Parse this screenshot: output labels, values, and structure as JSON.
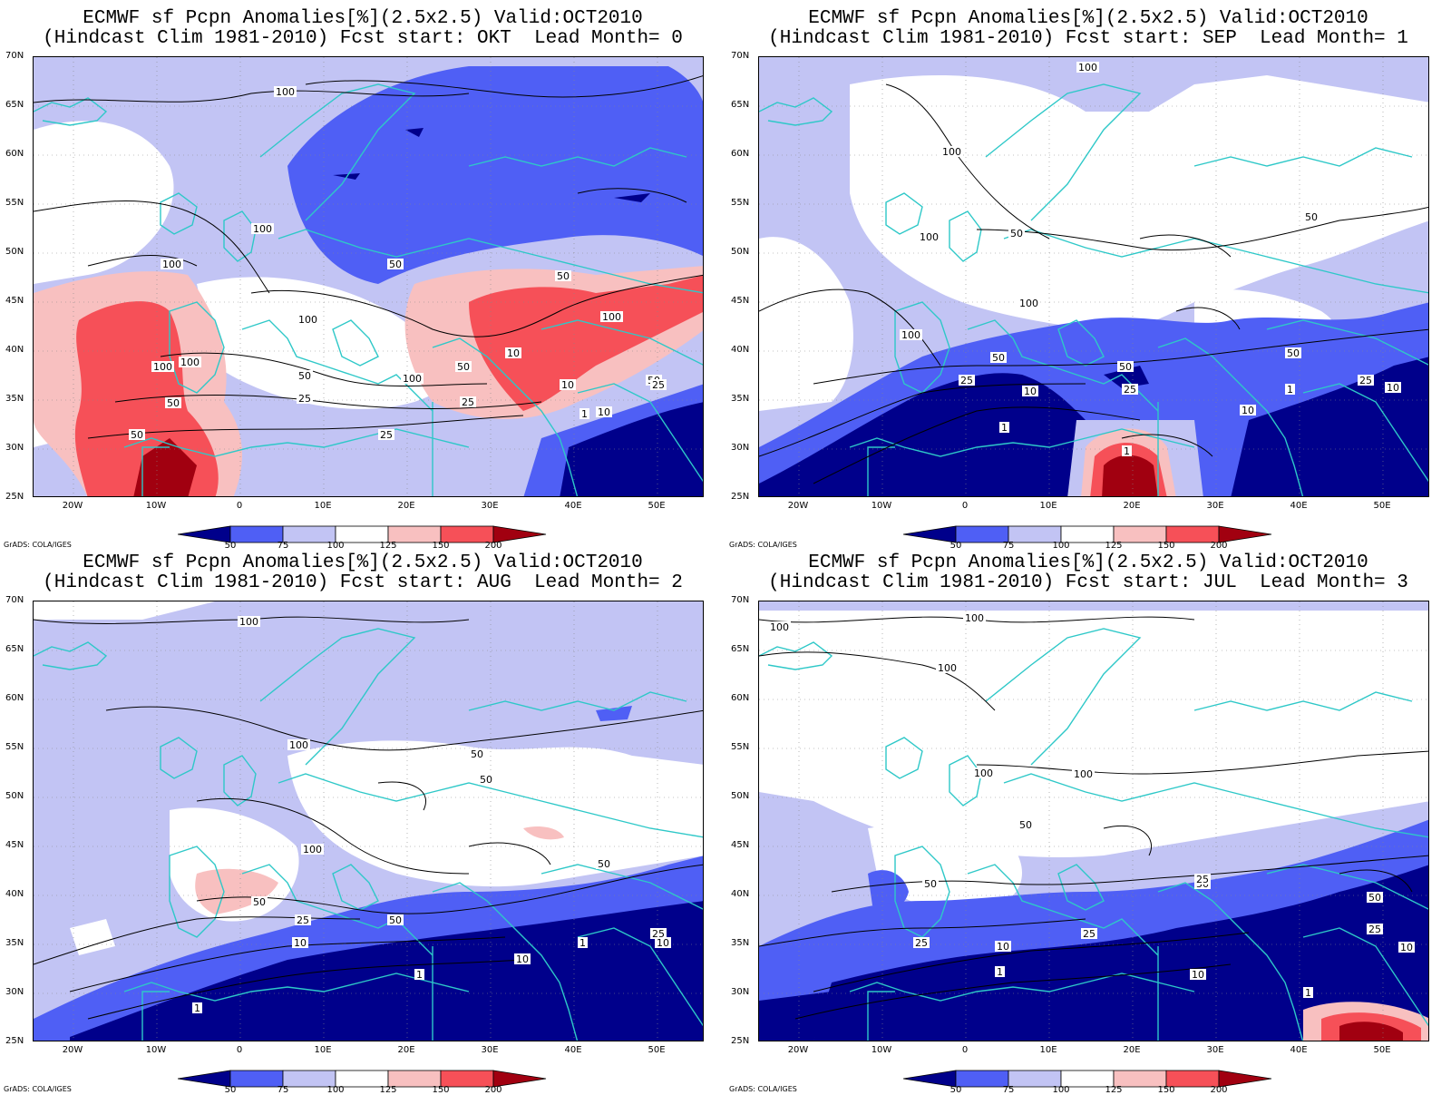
{
  "colors": {
    "c_lt50": "#00008b",
    "c_50_75": "#4f5ff5",
    "c_75_100": "#c2c4f4",
    "c_100_125": "#ffffff",
    "c_125_150": "#f8c0c0",
    "c_150_200": "#f65058",
    "c_gt200": "#a10010",
    "coast": "#2ec8c8",
    "contour": "#000000"
  },
  "lat_labels": [
    "70N",
    "65N",
    "60N",
    "55N",
    "50N",
    "45N",
    "40N",
    "35N",
    "30N",
    "25N"
  ],
  "lon_labels": [
    "20W",
    "10W",
    "0",
    "10E",
    "20E",
    "30E",
    "40E",
    "50E"
  ],
  "colorbar_ticks": [
    "50",
    "75",
    "100",
    "125",
    "150",
    "200"
  ],
  "credit": "GrADS: COLA/IGES",
  "panels": [
    {
      "title1": "ECMWF sf Pcpn Anomalies[%](2.5x2.5) Valid:OCT2010",
      "title2": "(Hindcast Clim 1981-2010) Fcst start: OKT  Lead Month= 0",
      "contour_labels": [
        "100",
        "100",
        "100",
        "100",
        "100",
        "100",
        "100",
        "100",
        "50",
        "50",
        "50",
        "50",
        "50",
        "50",
        "50",
        "25",
        "25",
        "25",
        "25",
        "10",
        "10",
        "10",
        "1"
      ],
      "pattern": "p0"
    },
    {
      "title1": "ECMWF sf Pcpn Anomalies[%](2.5x2.5) Valid:OCT2010",
      "title2": "(Hindcast Clim 1981-2010) Fcst start: SEP  Lead Month= 1",
      "contour_labels": [
        "100",
        "100",
        "100",
        "100",
        "100",
        "50",
        "50",
        "50",
        "50",
        "50",
        "25",
        "25",
        "25",
        "10",
        "10",
        "10",
        "1",
        "1",
        "1"
      ],
      "pattern": "p1"
    },
    {
      "title1": "ECMWF sf Pcpn Anomalies[%](2.5x2.5) Valid:OCT2010",
      "title2": "(Hindcast Clim 1981-2010) Fcst start: AUG  Lead Month= 2",
      "contour_labels": [
        "100",
        "100",
        "100",
        "50",
        "50",
        "50",
        "50",
        "50",
        "25",
        "25",
        "10",
        "10",
        "10",
        "1",
        "1",
        "1"
      ],
      "pattern": "p2"
    },
    {
      "title1": "ECMWF sf Pcpn Anomalies[%](2.5x2.5) Valid:OCT2010",
      "title2": "(Hindcast Clim 1981-2010) Fcst start: JUL  Lead Month= 3",
      "contour_labels": [
        "100",
        "100",
        "100",
        "100",
        "100",
        "50",
        "50",
        "50",
        "50",
        "25",
        "25",
        "25",
        "25",
        "10",
        "10",
        "10",
        "1",
        "1"
      ],
      "pattern": "p3"
    }
  ]
}
